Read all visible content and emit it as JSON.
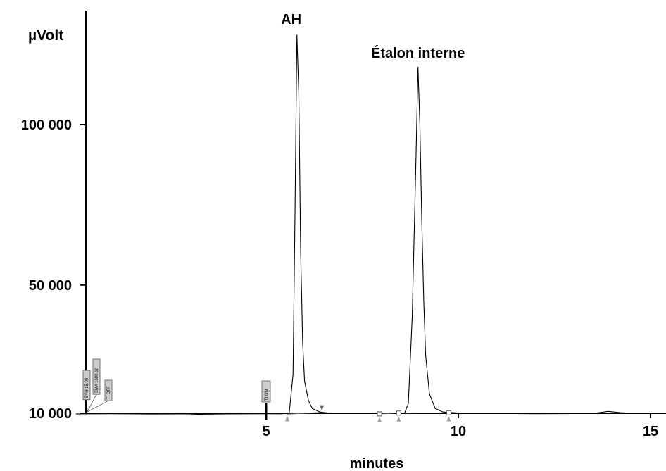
{
  "chart_data": {
    "type": "line",
    "ylabel": "µVolt",
    "xlabel": "minutes",
    "xlim": [
      0.05,
      15.5
    ],
    "ylim": [
      8000,
      133000
    ],
    "x_ticks": [
      5,
      10,
      15
    ],
    "x_tick_labels": [
      "5",
      "10",
      "15"
    ],
    "y_ticks": [
      10000,
      50000,
      100000
    ],
    "y_tick_labels": [
      "10 000",
      "50 000",
      "100 000"
    ],
    "grid": false,
    "series": [
      {
        "points": [
          [
            0.05,
            9800
          ],
          [
            1.0,
            9850
          ],
          [
            2.0,
            9750
          ],
          [
            3.0,
            9800
          ],
          [
            3.2,
            9700
          ],
          [
            4.0,
            9800
          ],
          [
            5.0,
            9850
          ],
          [
            5.4,
            9820
          ],
          [
            5.6,
            10100
          ],
          [
            5.7,
            22000
          ],
          [
            5.75,
            70000
          ],
          [
            5.8,
            128000
          ],
          [
            5.85,
            110000
          ],
          [
            5.9,
            60000
          ],
          [
            5.95,
            32000
          ],
          [
            6.0,
            20000
          ],
          [
            6.1,
            14000
          ],
          [
            6.2,
            11500
          ],
          [
            6.4,
            10400
          ],
          [
            6.6,
            10100
          ],
          [
            7.0,
            10000
          ],
          [
            7.5,
            9900
          ],
          [
            7.8,
            10100
          ],
          [
            8.0,
            9950
          ],
          [
            8.2,
            10100
          ],
          [
            8.4,
            9950
          ],
          [
            8.6,
            10050
          ],
          [
            8.7,
            13000
          ],
          [
            8.8,
            40000
          ],
          [
            8.9,
            90000
          ],
          [
            8.95,
            118000
          ],
          [
            9.0,
            100000
          ],
          [
            9.05,
            70000
          ],
          [
            9.1,
            45000
          ],
          [
            9.15,
            28000
          ],
          [
            9.25,
            16000
          ],
          [
            9.4,
            11500
          ],
          [
            9.6,
            10400
          ],
          [
            10.0,
            10100
          ],
          [
            11.0,
            9950
          ],
          [
            12.0,
            9850
          ],
          [
            13.0,
            9900
          ],
          [
            13.6,
            10100
          ],
          [
            13.9,
            10600
          ],
          [
            14.2,
            10200
          ],
          [
            14.6,
            9950
          ],
          [
            15.5,
            9900
          ]
        ]
      }
    ],
    "baselines": [
      [
        [
          5.55,
          9700
        ],
        [
          6.45,
          10300
        ]
      ],
      [
        [
          7.95,
          9800
        ],
        [
          8.45,
          10050
        ]
      ],
      [
        [
          8.45,
          10050
        ],
        [
          9.75,
          10150
        ]
      ]
    ],
    "peak_labels": [
      {
        "text": "AH",
        "x": 5.8,
        "y": 128000
      },
      {
        "text": "Étalon interne",
        "x": 8.95,
        "y": 118000
      }
    ],
    "peak_markers": [
      {
        "x": 5.55,
        "y": 9700,
        "symbol": "triangle-up"
      },
      {
        "x": 6.45,
        "y": 10300,
        "symbol": "triangle-down"
      },
      {
        "x": 7.95,
        "y": 9800,
        "symbol": "square"
      },
      {
        "x": 8.45,
        "y": 10050,
        "symbol": "square"
      },
      {
        "x": 9.75,
        "y": 10150,
        "symbol": "square"
      }
    ],
    "events": [
      {
        "text": "SYH 15.00",
        "x": 0.12
      },
      {
        "text": "SMA 1000.00",
        "x": 0.35
      },
      {
        "text": "TI OFF",
        "x": 0.6
      },
      {
        "text": "TI ON",
        "x": 5.0
      }
    ]
  }
}
